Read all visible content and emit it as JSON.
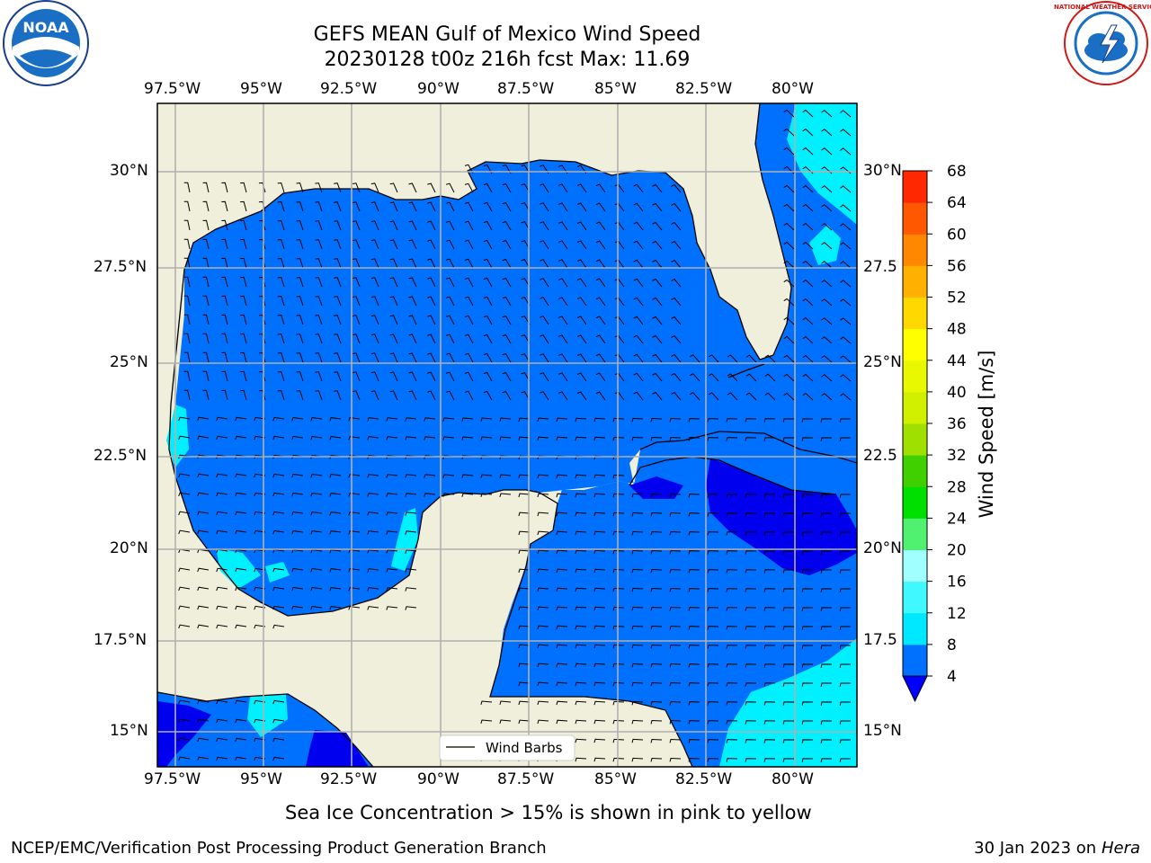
{
  "header": {
    "title_line1": "GEFS MEAN Gulf of Mexico Wind Speed",
    "title_line2": "20230128 t00z 216h fcst   Max: 11.69"
  },
  "axes": {
    "lon_ticks": [
      "97.5°W",
      "95°W",
      "92.5°W",
      "90°W",
      "87.5°W",
      "85°W",
      "82.5°W",
      "80°W"
    ],
    "lat_ticks_left": [
      "30°N",
      "27.5°N",
      "25°N",
      "22.5°N",
      "20°N",
      "17.5°N",
      "15°N"
    ],
    "lat_ticks_right": [
      "30°N",
      "27.5",
      "25°N",
      "22.5",
      "20°N",
      "17.5",
      "15°N"
    ]
  },
  "legend": {
    "label": "Wind Barbs"
  },
  "colorbar": {
    "label": "Wind Speed [m/s]",
    "ticks": [
      "4",
      "8",
      "12",
      "16",
      "20",
      "24",
      "28",
      "32",
      "36",
      "40",
      "44",
      "48",
      "52",
      "56",
      "60",
      "64",
      "68"
    ],
    "colors": [
      "#0070ff",
      "#00e8ff",
      "#40f8ff",
      "#a0ffff",
      "#50f070",
      "#00e000",
      "#40d000",
      "#a0e000",
      "#d0f000",
      "#e8f800",
      "#ffff00",
      "#ffd800",
      "#ffb000",
      "#ff8800",
      "#ff5800",
      "#ff2800",
      "#ff0000"
    ],
    "under_color": "#0000ff"
  },
  "colors": {
    "land": "#efefdc",
    "ocean": "#0070ff",
    "low_wind": "#0000ee",
    "mid_wind": "#00ffff",
    "grid": "#b0b0b0"
  },
  "logos": {
    "left": "NOAA",
    "right": "NATIONAL WEATHER SERVICE"
  },
  "footer": {
    "note": "Sea Ice Concentration > 15% is shown in pink to yellow",
    "credit": "NCEP/EMC/Verification Post Processing Product Generation Branch",
    "date": "30 Jan 2023 on ",
    "machine": "Hera"
  }
}
